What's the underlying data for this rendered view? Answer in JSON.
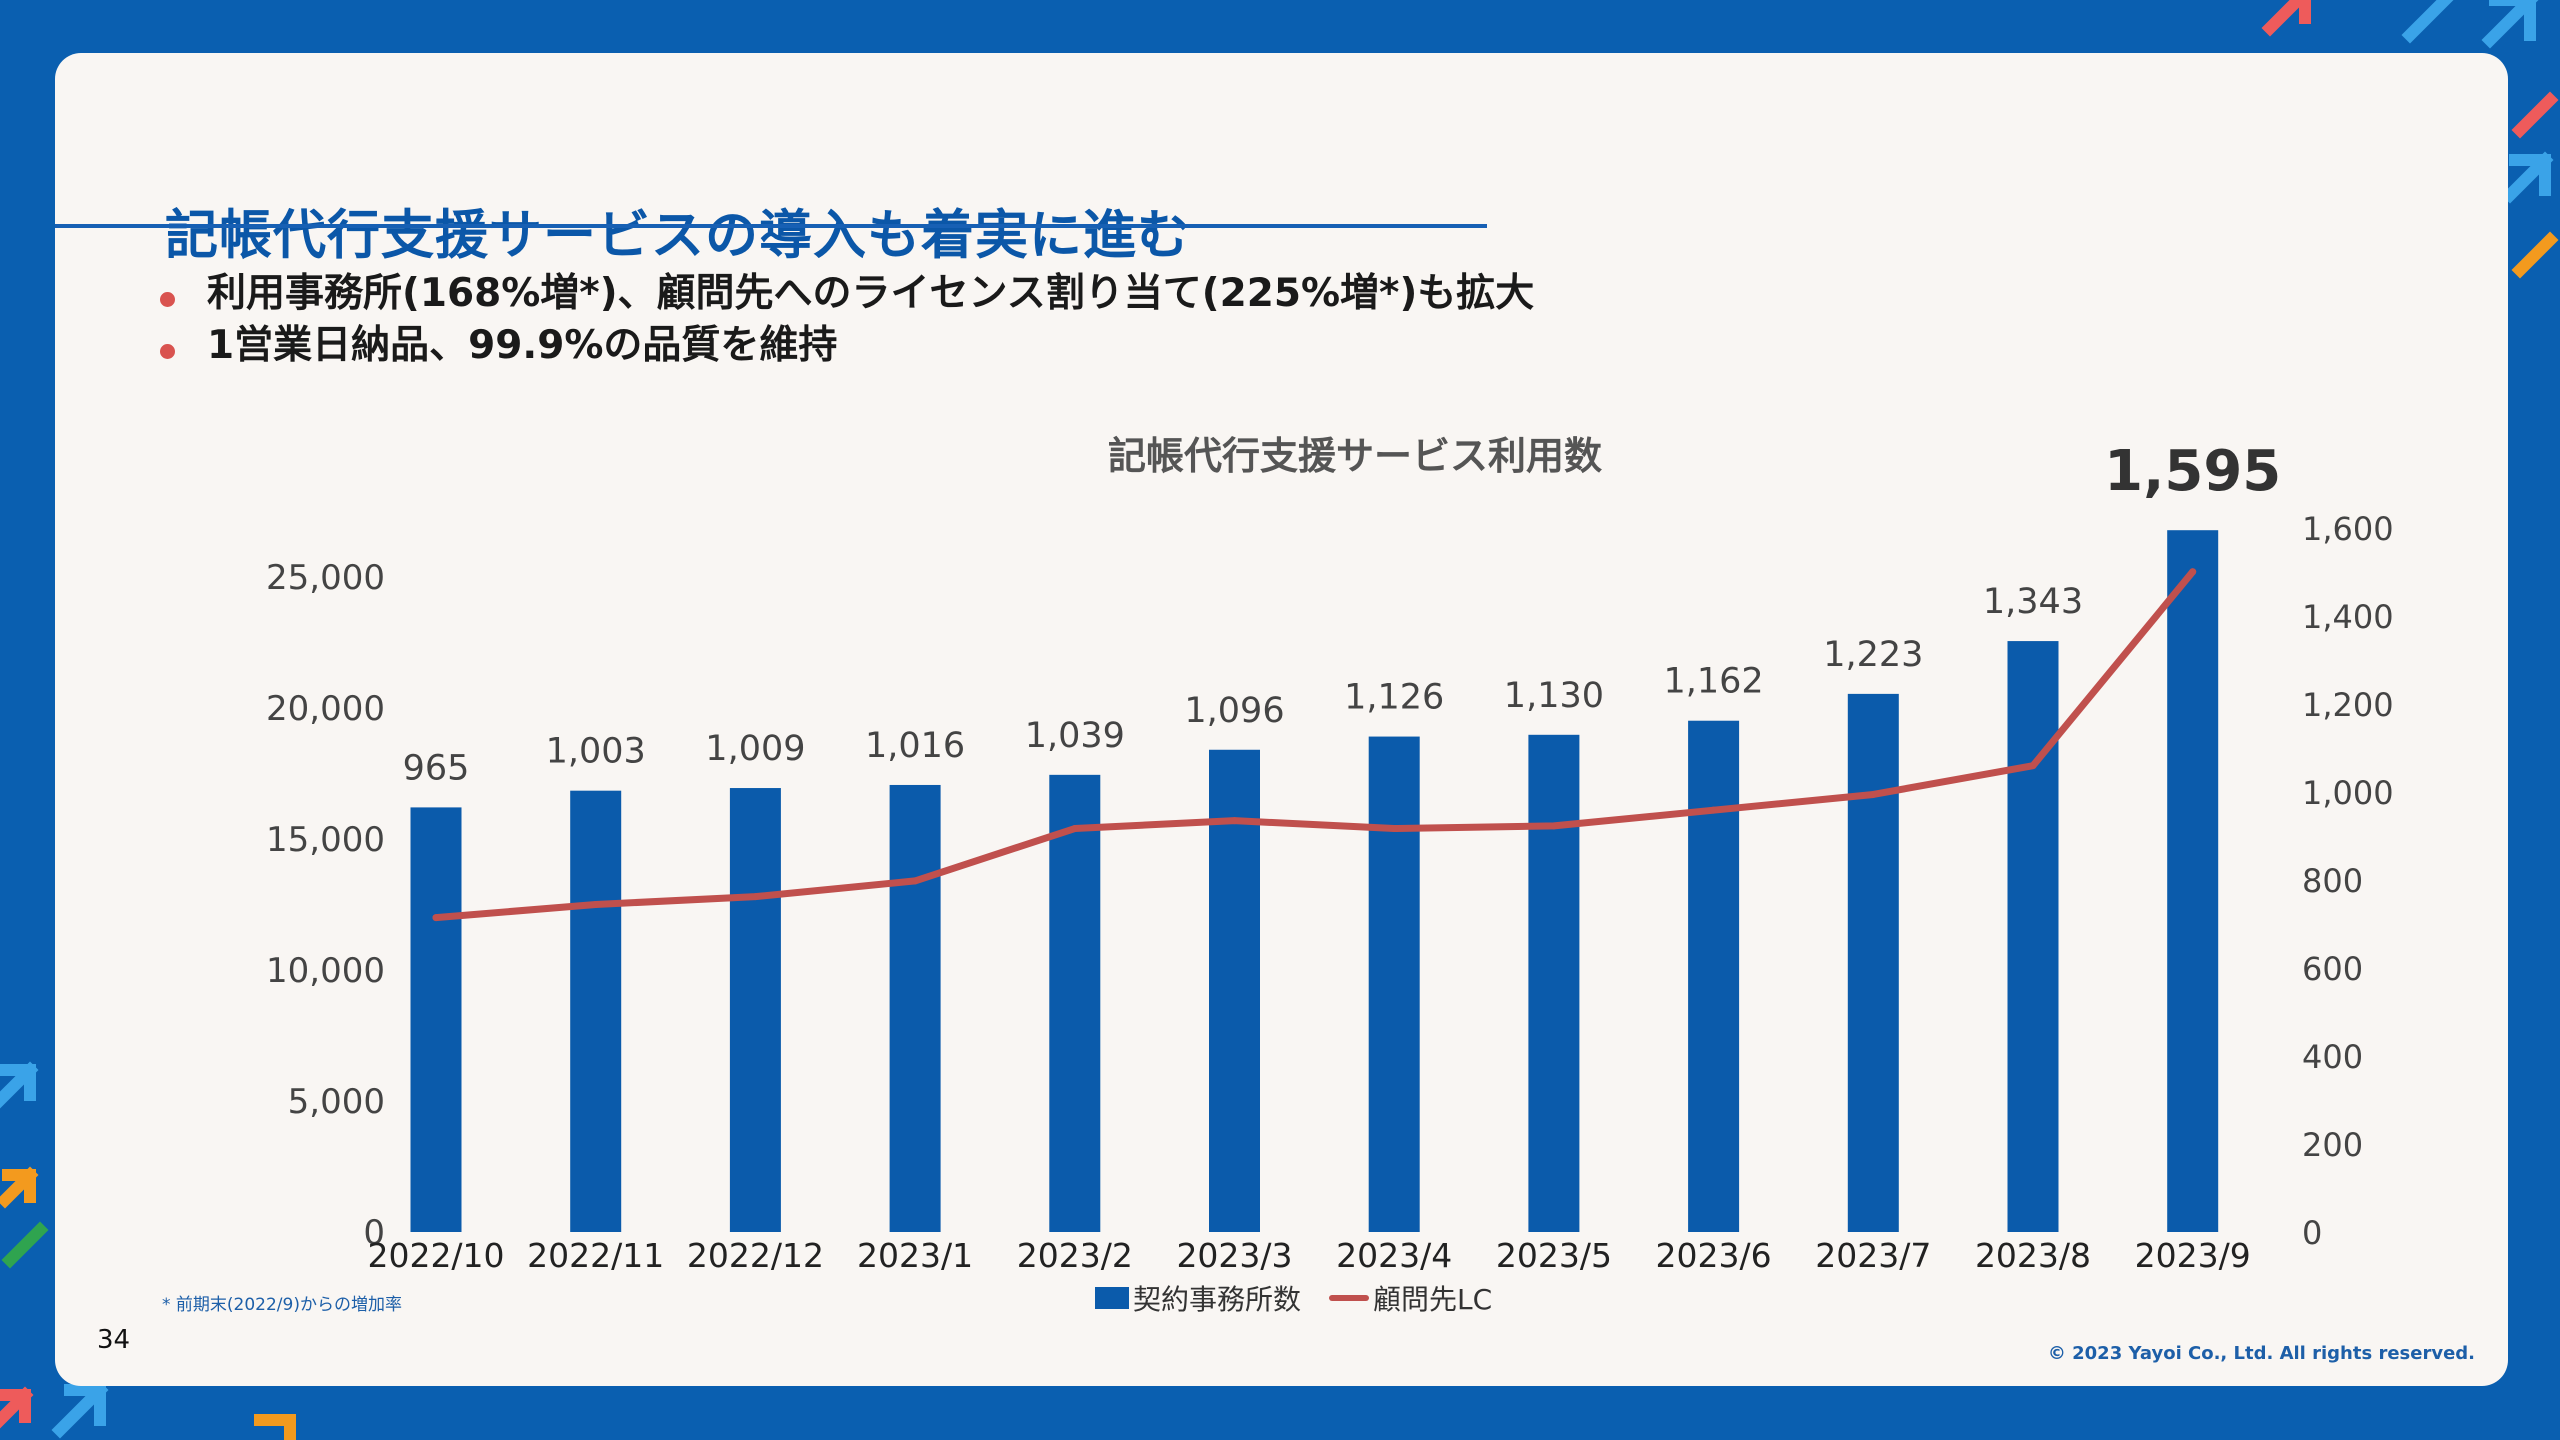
{
  "slide": {
    "title": "記帳代行支援サービスの導入も着実に進む",
    "bullets": [
      "利用事務所(168%増*)、顧問先へのライセンス割り当て(225%増*)も拡大",
      "1営業日納品、99.9%の品質を維持"
    ],
    "footnote": "* 前期末(2022/9)からの増加率",
    "page_number": "34",
    "copyright": "© 2023 Yayoi Co., Ltd.  All rights reserved.",
    "background_color": "#0a5fb0",
    "card_color": "#f9f6f3",
    "accent_color": "#0b57a8"
  },
  "chart_data": {
    "type": "bar",
    "title": "記帳代行支援サービス利用数",
    "categories": [
      "2022/10",
      "2022/11",
      "2022/12",
      "2023/1",
      "2023/2",
      "2023/3",
      "2023/4",
      "2023/5",
      "2023/6",
      "2023/7",
      "2023/8",
      "2023/9"
    ],
    "series": [
      {
        "name": "契約事務所数",
        "type": "bar",
        "axis": "right",
        "color": "#0b5bab",
        "values": [
          965,
          1003,
          1009,
          1016,
          1039,
          1096,
          1126,
          1130,
          1162,
          1223,
          1343,
          1595
        ],
        "labels": [
          "965",
          "1,003",
          "1,009",
          "1,016",
          "1,039",
          "1,096",
          "1,126",
          "1,130",
          "1,162",
          "1,223",
          "1,343",
          "1,595"
        ],
        "highlight_index": 11
      },
      {
        "name": "顧問先LC",
        "type": "line",
        "axis": "left",
        "color": "#c0504d",
        "values": [
          12000,
          12500,
          12800,
          13400,
          15400,
          15700,
          15400,
          15500,
          16100,
          16700,
          17800,
          25200
        ]
      }
    ],
    "y_left": {
      "range": [
        0,
        25000
      ],
      "ticks": [
        "0",
        "5,000",
        "10,000",
        "15,000",
        "20,000",
        "25,000"
      ]
    },
    "y_right": {
      "range": [
        0,
        1600
      ],
      "ticks": [
        "0",
        "200",
        "400",
        "600",
        "800",
        "1,000",
        "1,200",
        "1,400",
        "1,600"
      ]
    },
    "grid": false,
    "legend": "bottom"
  }
}
